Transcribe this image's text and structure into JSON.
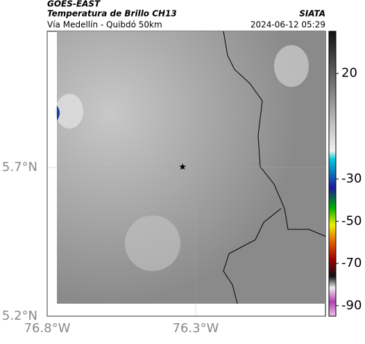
{
  "header": {
    "source": "GOES-EAST",
    "product": "Temperatura de Brillo CH13",
    "organization": "SIATA",
    "route": "Vía Medellín - Quibdó 50km",
    "timestamp": "2024-06-12 05:29"
  },
  "map": {
    "xlim": [
      -76.8,
      -75.863
    ],
    "ylim": [
      5.2,
      6.158
    ],
    "xticks": [
      {
        "value": -76.8,
        "label": "76.8°W"
      },
      {
        "value": -76.3,
        "label": "76.3°W"
      }
    ],
    "yticks": [
      {
        "value": 5.2,
        "label": "5.2°N"
      },
      {
        "value": 5.7,
        "label": "5.7°N"
      }
    ],
    "marker": {
      "lon": -76.344,
      "lat": 5.702
    }
  },
  "colorbar": {
    "lim": [
      -95,
      40
    ],
    "ticks": [
      20,
      -30,
      -50,
      -70,
      -90
    ]
  }
}
